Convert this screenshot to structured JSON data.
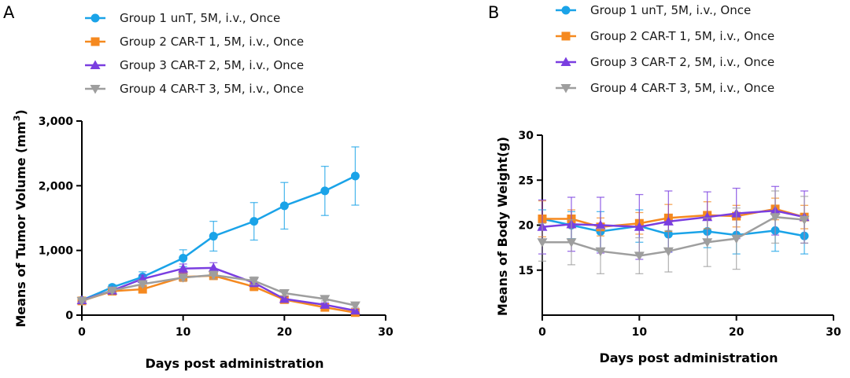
{
  "panels": [
    {
      "letter": "A",
      "chart_data": {
        "type": "line",
        "title": "",
        "xlabel": "Days post administration",
        "ylabel": "Means of Tumor Volume (mm",
        "ylabel_superscript": "3",
        "ylabel_close": ")",
        "xlim": [
          0,
          30
        ],
        "ylim": [
          0,
          3000
        ],
        "x_ticks": [
          0,
          10,
          20,
          30
        ],
        "x_tick_labels": [
          "0",
          "10",
          "20",
          "30"
        ],
        "y_ticks": [
          0,
          1000,
          2000,
          3000
        ],
        "y_tick_labels": [
          "0",
          "1,000",
          "2,000",
          "3,000"
        ],
        "legend_position": "top",
        "series": [
          {
            "name": "Group 1 unT, 5M, i.v., Once",
            "color": "#1aa3e8",
            "marker": "circle",
            "x": [
              0,
              3,
              6,
              10,
              13,
              17,
              20,
              24,
              27
            ],
            "y": [
              230,
              430,
              590,
              880,
              1220,
              1450,
              1690,
              1920,
              2150
            ],
            "err": [
              30,
              40,
              80,
              130,
              230,
              290,
              360,
              380,
              450
            ]
          },
          {
            "name": "Group 2 CAR-T 1, 5M, i.v., Once",
            "color": "#f5891f",
            "marker": "square",
            "x": [
              0,
              3,
              6,
              10,
              13,
              17,
              20,
              24,
              27
            ],
            "y": [
              220,
              370,
              400,
              590,
              610,
              440,
              240,
              120,
              40
            ],
            "err": [
              20,
              30,
              40,
              70,
              60,
              60,
              40,
              30,
              20
            ]
          },
          {
            "name": "Group 3 CAR-T 2, 5M, i.v., Once",
            "color": "#7a3ee0",
            "marker": "triangle-up",
            "x": [
              0,
              3,
              6,
              10,
              13,
              17,
              20,
              24,
              27
            ],
            "y": [
              230,
              380,
              560,
              720,
              730,
              500,
              250,
              160,
              70
            ],
            "err": [
              20,
              30,
              60,
              70,
              80,
              60,
              40,
              30,
              20
            ]
          },
          {
            "name": "Group 4 CAR-T 3, 5M, i.v., Once",
            "color": "#9e9e9e",
            "marker": "triangle-down",
            "x": [
              0,
              3,
              6,
              10,
              13,
              17,
              20,
              24,
              27
            ],
            "y": [
              220,
              380,
              480,
              580,
              620,
              530,
              340,
              250,
              150
            ],
            "err": [
              20,
              30,
              40,
              50,
              60,
              60,
              40,
              30,
              30
            ]
          }
        ]
      }
    },
    {
      "letter": "B",
      "chart_data": {
        "type": "line",
        "title": "",
        "xlabel": "Days post administration",
        "ylabel": "Means of Body Weight(g)",
        "xlim": [
          0,
          30
        ],
        "ylim": [
          10,
          30
        ],
        "x_ticks": [
          0,
          10,
          20,
          30
        ],
        "x_tick_labels": [
          "0",
          "10",
          "20",
          "30"
        ],
        "y_ticks": [
          15,
          20,
          25,
          30
        ],
        "y_tick_labels": [
          "15",
          "20",
          "25",
          "30"
        ],
        "legend_position": "top",
        "series": [
          {
            "name": "Group 1 unT, 5M, i.v., Once",
            "color": "#1aa3e8",
            "marker": "circle",
            "x": [
              0,
              3,
              6,
              10,
              13,
              17,
              20,
              24,
              27
            ],
            "y": [
              20.7,
              20.0,
              19.3,
              19.9,
              19.0,
              19.3,
              18.9,
              19.4,
              18.8
            ],
            "err": [
              1.0,
              1.5,
              2.2,
              1.8,
              2.0,
              1.8,
              2.1,
              2.3,
              2.0
            ]
          },
          {
            "name": "Group 2 CAR-T 1, 5M, i.v., Once",
            "color": "#f5891f",
            "marker": "square",
            "x": [
              0,
              3,
              6,
              10,
              13,
              17,
              20,
              24,
              27
            ],
            "y": [
              20.7,
              20.7,
              19.8,
              20.2,
              20.8,
              21.1,
              21.0,
              21.8,
              20.9
            ],
            "err": [
              2.0,
              1.0,
              1.0,
              1.2,
              1.5,
              1.5,
              1.2,
              1.2,
              1.3
            ]
          },
          {
            "name": "Group 3 CAR-T 2, 5M, i.v., Once",
            "color": "#7a3ee0",
            "marker": "triangle-up",
            "x": [
              0,
              3,
              6,
              10,
              13,
              17,
              20,
              24,
              27
            ],
            "y": [
              19.8,
              20.1,
              20.0,
              19.8,
              20.4,
              20.9,
              21.3,
              21.6,
              20.9
            ],
            "err": [
              3.0,
              3.0,
              3.1,
              3.6,
              3.4,
              2.8,
              2.8,
              2.7,
              2.9
            ]
          },
          {
            "name": "Group 4 CAR-T 3, 5M, i.v., Once",
            "color": "#9e9e9e",
            "marker": "triangle-down",
            "x": [
              0,
              3,
              6,
              10,
              13,
              17,
              20,
              24,
              27
            ],
            "y": [
              18.1,
              18.1,
              17.1,
              16.6,
              17.1,
              18.1,
              18.5,
              20.9,
              20.6
            ],
            "err": [
              2.1,
              2.5,
              2.5,
              2.0,
              2.3,
              2.7,
              3.4,
              2.9,
              2.6
            ]
          }
        ]
      }
    }
  ]
}
